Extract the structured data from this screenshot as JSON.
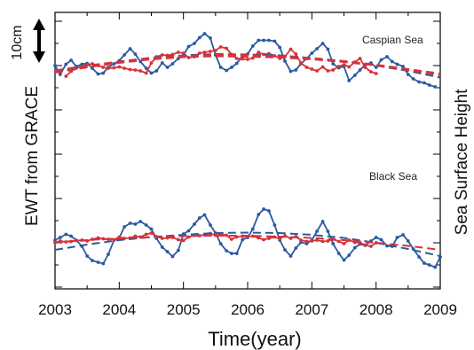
{
  "chart_data": {
    "type": "line",
    "xlabel": "Time(year)",
    "ylabel_left": "EWT from GRACE",
    "ylabel_right": "Sea Surface Height",
    "xlim": [
      2003,
      2009
    ],
    "xticks": [
      "2003",
      "2004",
      "2005",
      "2006",
      "2007",
      "2008",
      "2009"
    ],
    "scale_bar_label": "10cm",
    "colors": {
      "grace": "#2a5aa0",
      "ssh": "#d8323a"
    },
    "panels": [
      {
        "label": "Caspian Sea",
        "series": [
          {
            "color": "#2a5aa0",
            "x": [
              2003.0,
              2003.08,
              2003.17,
              2003.25,
              2003.33,
              2003.42,
              2003.5,
              2003.58,
              2003.67,
              2003.75,
              2003.83,
              2003.92,
              2004.0,
              2004.08,
              2004.17,
              2004.25,
              2004.33,
              2004.42,
              2004.5,
              2004.58,
              2004.67,
              2004.75,
              2004.83,
              2004.92,
              2005.0,
              2005.08,
              2005.17,
              2005.25,
              2005.33,
              2005.42,
              2005.5,
              2005.58,
              2005.67,
              2005.75,
              2005.83,
              2005.92,
              2006.0,
              2006.08,
              2006.17,
              2006.25,
              2006.33,
              2006.42,
              2006.5,
              2006.58,
              2006.67,
              2006.75,
              2006.83,
              2006.92,
              2007.0,
              2007.08,
              2007.17,
              2007.25,
              2007.33,
              2007.42,
              2007.5,
              2007.58,
              2007.67,
              2007.75,
              2007.83,
              2007.92,
              2008.0,
              2008.08,
              2008.17,
              2008.25,
              2008.33,
              2008.42,
              2008.5,
              2008.58,
              2008.67,
              2008.75,
              2008.83,
              2008.92
            ],
            "y": [
              3.6,
              1.6,
              3.9,
              4.8,
              3.4,
              3.9,
              4.1,
              3.0,
              1.7,
              1.9,
              3.2,
              4.0,
              4.7,
              6.0,
              7.4,
              6.2,
              4.5,
              3.0,
              1.9,
              2.4,
              4.2,
              3.2,
              4.0,
              5.2,
              6.0,
              7.9,
              8.6,
              9.9,
              10.8,
              9.8,
              6.0,
              3.2,
              2.5,
              3.2,
              4.1,
              5.7,
              6.2,
              8.0,
              9.3,
              9.3,
              9.3,
              9.1,
              7.7,
              4.6,
              2.3,
              2.6,
              4.0,
              5.2,
              6.4,
              7.4,
              8.6,
              7.3,
              4.0,
              3.1,
              3.4,
              0.2,
              1.4,
              2.6,
              3.8,
              4.2,
              3.2,
              4.9,
              5.6,
              4.5,
              3.9,
              3.4,
              1.6,
              0.6,
              -0.1,
              -0.3,
              -0.8,
              -1.2
            ]
          },
          {
            "color": "#d8323a",
            "x": [
              2003.17,
              2003.25,
              2003.33,
              2003.42,
              2003.5,
              2003.58,
              2003.67,
              2003.75,
              2003.83,
              2003.92,
              2004.0,
              2004.08,
              2004.17,
              2004.25,
              2004.33,
              2004.42,
              2004.5,
              2004.58,
              2004.67,
              2004.75,
              2004.83,
              2004.92,
              2005.0,
              2005.08,
              2005.17,
              2005.25,
              2005.33,
              2005.42,
              2005.5,
              2005.58,
              2005.67,
              2005.75,
              2005.83,
              2005.92,
              2006.0,
              2006.08,
              2006.17,
              2006.25,
              2006.33,
              2006.42,
              2006.5,
              2006.58,
              2006.67,
              2006.75,
              2006.83,
              2006.92,
              2007.0,
              2007.08,
              2007.17,
              2007.25,
              2007.33,
              2007.42,
              2007.5,
              2007.58,
              2007.67,
              2007.75,
              2007.83,
              2007.92,
              2008.0
            ],
            "y": [
              1.2,
              2.3,
              3.0,
              3.4,
              3.8,
              4.0,
              3.6,
              3.2,
              3.0,
              3.1,
              3.3,
              3.0,
              2.7,
              2.6,
              2.4,
              1.9,
              4.2,
              5.6,
              6.0,
              5.9,
              6.1,
              6.6,
              6.4,
              5.4,
              5.6,
              6.4,
              6.6,
              6.8,
              7.0,
              7.8,
              7.5,
              6.1,
              5.2,
              5.1,
              5.0,
              5.3,
              6.6,
              6.1,
              6.3,
              5.8,
              5.2,
              5.6,
              7.3,
              6.2,
              4.2,
              3.2,
              2.8,
              2.4,
              3.3,
              2.4,
              2.6,
              3.4,
              3.8,
              3.3,
              4.4,
              5.2,
              3.2,
              2.2,
              1.8
            ]
          },
          {
            "color": "#2a5aa0",
            "dashed": true,
            "x": [
              2003.0,
              2003.5,
              2004.0,
              2004.5,
              2005.0,
              2005.5,
              2006.0,
              2006.5,
              2007.0,
              2007.5,
              2008.0,
              2008.5,
              2009.0
            ],
            "y": [
              2.2,
              3.4,
              4.5,
              5.4,
              5.9,
              6.2,
              6.1,
              5.9,
              5.3,
              4.6,
              3.6,
              2.4,
              0.9
            ]
          },
          {
            "color": "#d8323a",
            "dashed": true,
            "x": [
              2003.0,
              2003.5,
              2004.0,
              2004.5,
              2005.0,
              2005.5,
              2006.0,
              2006.5,
              2007.0,
              2007.5,
              2008.0,
              2008.5,
              2009.0
            ],
            "y": [
              2.5,
              3.6,
              4.5,
              5.3,
              5.8,
              6.0,
              6.0,
              5.7,
              5.3,
              4.6,
              3.8,
              2.8,
              1.8
            ]
          },
          {
            "color": "#d8323a",
            "dashed": true,
            "x": [
              2003.0,
              2003.5,
              2004.0,
              2004.5,
              2005.0,
              2005.5,
              2006.0,
              2006.5,
              2007.0,
              2007.5,
              2008.0,
              2008.5,
              2009.0
            ],
            "y": [
              2.0,
              3.2,
              4.2,
              5.0,
              5.5,
              5.7,
              5.6,
              5.4,
              5.0,
              4.4,
              3.6,
              2.6,
              1.4
            ]
          }
        ]
      },
      {
        "label": "Black Sea",
        "series": [
          {
            "color": "#2a5aa0",
            "x": [
              2003.0,
              2003.08,
              2003.17,
              2003.25,
              2003.33,
              2003.42,
              2003.5,
              2003.58,
              2003.67,
              2003.75,
              2003.83,
              2003.92,
              2004.0,
              2004.08,
              2004.17,
              2004.25,
              2004.33,
              2004.42,
              2004.5,
              2004.58,
              2004.67,
              2004.75,
              2004.83,
              2004.92,
              2005.0,
              2005.08,
              2005.17,
              2005.25,
              2005.33,
              2005.42,
              2005.5,
              2005.58,
              2005.67,
              2005.75,
              2005.83,
              2005.92,
              2006.0,
              2006.08,
              2006.17,
              2006.25,
              2006.33,
              2006.42,
              2006.5,
              2006.58,
              2006.67,
              2006.75,
              2006.83,
              2006.92,
              2007.0,
              2007.08,
              2007.17,
              2007.25,
              2007.33,
              2007.42,
              2007.5,
              2007.58,
              2007.67,
              2007.75,
              2007.83,
              2007.92,
              2008.0,
              2008.08,
              2008.17,
              2008.25,
              2008.33,
              2008.42,
              2008.5,
              2008.58,
              2008.67,
              2008.75,
              2008.83,
              2008.92,
              2009.0
            ],
            "y": [
              -5.0,
              -4.4,
              -3.7,
              -4.1,
              -5.0,
              -6.4,
              -8.6,
              -9.6,
              -10.0,
              -10.3,
              -8.2,
              -5.0,
              -4.5,
              -2.0,
              -1.2,
              -1.4,
              -0.8,
              -1.6,
              -2.5,
              -4.6,
              -6.6,
              -7.6,
              -8.7,
              -7.3,
              -3.6,
              -2.9,
              -1.4,
              0.0,
              0.7,
              -1.6,
              -3.4,
              -5.8,
              -7.4,
              -8.0,
              -8.0,
              -4.9,
              -4.4,
              -2.5,
              0.8,
              2.0,
              1.6,
              -1.6,
              -5.0,
              -7.2,
              -8.6,
              -6.8,
              -5.5,
              -5.8,
              -5.0,
              -3.0,
              -0.8,
              -3.0,
              -5.8,
              -8.0,
              -9.5,
              -8.4,
              -6.7,
              -5.9,
              -6.2,
              -5.2,
              -4.4,
              -4.9,
              -6.3,
              -6.4,
              -4.4,
              -3.8,
              -5.2,
              -7.0,
              -8.8,
              -10.2,
              -10.6,
              -11.1,
              -8.8
            ]
          },
          {
            "color": "#d8323a",
            "x": [
              2003.0,
              2003.08,
              2003.17,
              2003.25,
              2003.33,
              2003.42,
              2003.5,
              2003.58,
              2003.67,
              2003.75,
              2003.83,
              2003.92,
              2004.0,
              2004.08,
              2004.17,
              2004.25,
              2004.33,
              2004.42,
              2004.5,
              2004.58,
              2004.67,
              2004.75,
              2004.83,
              2004.92,
              2005.0,
              2005.08,
              2005.17,
              2005.25,
              2005.33,
              2005.42,
              2005.5,
              2005.58,
              2005.67,
              2005.75,
              2005.83,
              2005.92,
              2006.0,
              2006.08,
              2006.17,
              2006.25,
              2006.33,
              2006.42,
              2006.5,
              2006.58,
              2006.67,
              2006.75,
              2006.83,
              2006.92,
              2007.0,
              2007.08,
              2007.17,
              2007.25,
              2007.33,
              2007.42,
              2007.5,
              2007.58,
              2007.67,
              2007.75,
              2007.83,
              2007.92,
              2008.0
            ],
            "y": [
              -5.6,
              -5.2,
              -5.4,
              -5.3,
              -5.1,
              -5.0,
              -5.2,
              -4.8,
              -4.5,
              -4.7,
              -4.8,
              -4.9,
              -4.3,
              -4.6,
              -4.5,
              -4.1,
              -4.3,
              -3.7,
              -3.4,
              -4.2,
              -4.6,
              -4.5,
              -4.4,
              -4.9,
              -5.1,
              -4.3,
              -3.9,
              -4.0,
              -3.8,
              -3.5,
              -3.9,
              -3.7,
              -3.9,
              -4.8,
              -4.3,
              -4.1,
              -4.2,
              -4.1,
              -4.5,
              -4.9,
              -4.6,
              -4.3,
              -4.7,
              -4.0,
              -4.6,
              -4.2,
              -5.0,
              -5.3,
              -5.2,
              -5.0,
              -5.3,
              -5.2,
              -4.8,
              -5.3,
              -5.8,
              -5.0,
              -5.5,
              -5.6,
              -6.1,
              -6.4,
              -5.6
            ]
          },
          {
            "color": "#2a5aa0",
            "dashed": true,
            "x": [
              2003.0,
              2003.5,
              2004.0,
              2004.5,
              2005.0,
              2005.5,
              2006.0,
              2006.5,
              2007.0,
              2007.5,
              2008.0,
              2008.5,
              2009.0
            ],
            "y": [
              -7.2,
              -6.0,
              -5.0,
              -4.3,
              -3.8,
              -3.4,
              -3.3,
              -3.4,
              -3.8,
              -4.5,
              -5.6,
              -7.0,
              -8.6
            ]
          },
          {
            "color": "#d8323a",
            "dashed": true,
            "x": [
              2003.0,
              2003.5,
              2004.0,
              2004.5,
              2005.0,
              2005.5,
              2006.0,
              2006.5,
              2007.0,
              2007.5,
              2008.0,
              2008.5,
              2009.0
            ],
            "y": [
              -5.5,
              -5.0,
              -4.6,
              -4.3,
              -4.1,
              -4.0,
              -4.0,
              -4.2,
              -4.5,
              -5.0,
              -5.6,
              -6.3,
              -7.2
            ]
          }
        ]
      }
    ]
  }
}
